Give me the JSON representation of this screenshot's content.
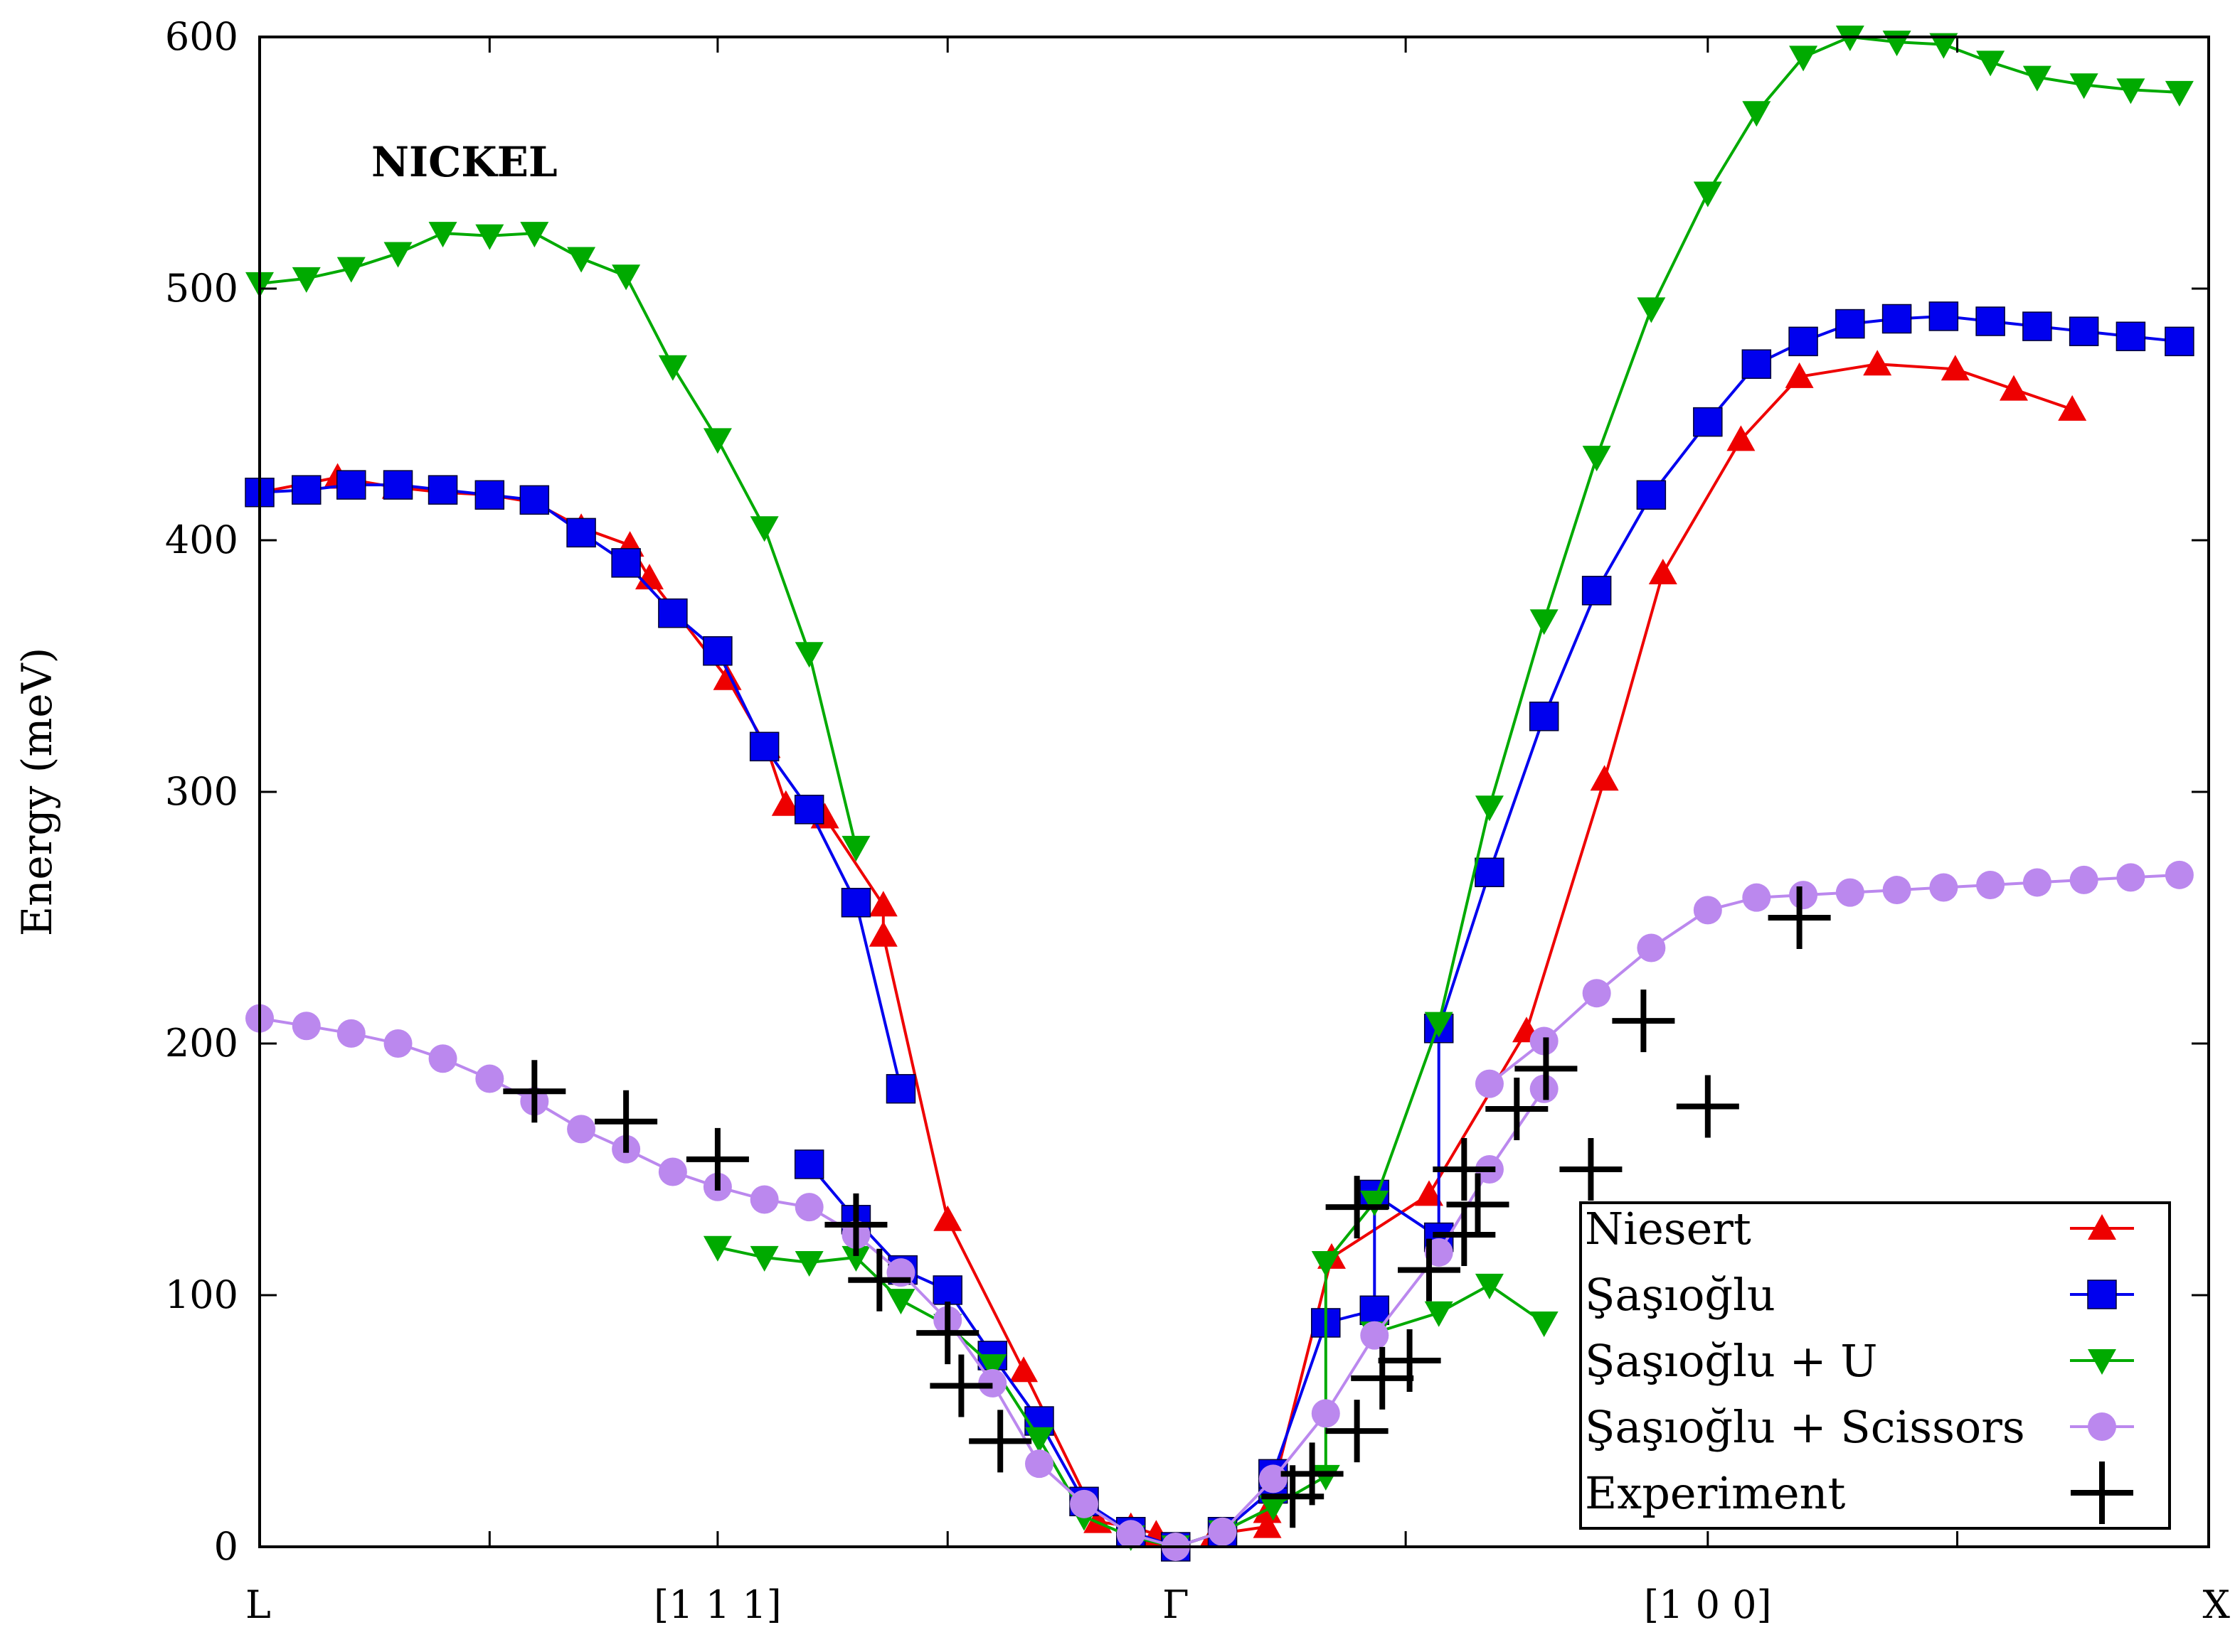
{
  "chart_data": {
    "type": "line",
    "title": "",
    "annotation": "NICKEL",
    "xlabel": "",
    "ylabel": "Energy (meV)",
    "xlim": [
      0,
      1
    ],
    "ylim": [
      0,
      600
    ],
    "yticks": [
      0,
      100,
      200,
      300,
      400,
      500,
      600
    ],
    "ytick_labels": [
      "0",
      "100",
      "200",
      "300",
      "400",
      "500",
      "600"
    ],
    "xtick_labels": [
      {
        "x": 0.0,
        "label": "L"
      },
      {
        "x": 0.235,
        "label": "[1 1 1]"
      },
      {
        "x": 0.47,
        "label": "Γ"
      },
      {
        "x": 0.743,
        "label": "[1 0 0]"
      },
      {
        "x": 1.0,
        "label": "X"
      }
    ],
    "minor_xticks": [
      0.118,
      0.235,
      0.353,
      0.588,
      0.743,
      0.871
    ],
    "grid": false,
    "legend_position": "bottom-right",
    "series": [
      {
        "name": "Niesert",
        "color": "#ee0000",
        "marker": "triangle-up",
        "segments": [
          [
            [
              0.0,
              419
            ],
            [
              0.04,
              425
            ],
            [
              0.07,
              421
            ],
            [
              0.094,
              419
            ],
            [
              0.118,
              418
            ],
            [
              0.141,
              415
            ],
            [
              0.165,
              405
            ],
            [
              0.19,
              398
            ],
            [
              0.2,
              385
            ],
            [
              0.24,
              345
            ],
            [
              0.26,
              318
            ],
            [
              0.27,
              295
            ],
            [
              0.29,
              290
            ],
            [
              0.32,
              255
            ],
            [
              0.32,
              243
            ],
            [
              0.353,
              130
            ],
            [
              0.392,
              70
            ],
            [
              0.43,
              10
            ],
            [
              0.447,
              8
            ],
            [
              0.46,
              5
            ],
            [
              0.47,
              0
            ],
            [
              0.49,
              5
            ],
            [
              0.517,
              8
            ],
            [
              0.517,
              14
            ],
            [
              0.55,
              115
            ],
            [
              0.6,
              140
            ],
            [
              0.65,
              205
            ],
            [
              0.69,
              305
            ],
            [
              0.72,
              387
            ],
            [
              0.76,
              440
            ],
            [
              0.79,
              465
            ],
            [
              0.83,
              470
            ],
            [
              0.87,
              468
            ],
            [
              0.9,
              460
            ],
            [
              0.93,
              452
            ]
          ]
        ]
      },
      {
        "name": "Şaşıoğlu",
        "color": "#0000ee",
        "marker": "square",
        "segments": [
          [
            [
              0.0,
              419
            ],
            [
              0.024,
              420
            ],
            [
              0.047,
              422
            ],
            [
              0.071,
              422
            ],
            [
              0.094,
              420
            ],
            [
              0.118,
              418
            ],
            [
              0.141,
              416
            ],
            [
              0.165,
              403
            ],
            [
              0.188,
              391
            ],
            [
              0.212,
              371
            ],
            [
              0.235,
              356
            ],
            [
              0.259,
              318
            ],
            [
              0.282,
              293
            ],
            [
              0.306,
              256
            ],
            [
              0.329,
              182
            ]
          ],
          [
            [
              0.282,
              152
            ],
            [
              0.306,
              130
            ],
            [
              0.33,
              110
            ],
            [
              0.353,
              102
            ],
            [
              0.376,
              76
            ],
            [
              0.4,
              50
            ],
            [
              0.423,
              18
            ],
            [
              0.447,
              6
            ],
            [
              0.47,
              0
            ],
            [
              0.494,
              6
            ],
            [
              0.52,
              23
            ],
            [
              0.52,
              29
            ],
            [
              0.547,
              89
            ],
            [
              0.572,
              94
            ],
            [
              0.572,
              140
            ],
            [
              0.605,
              123
            ],
            [
              0.605,
              206
            ],
            [
              0.631,
              268
            ],
            [
              0.659,
              330
            ],
            [
              0.686,
              380
            ],
            [
              0.714,
              418
            ],
            [
              0.743,
              447
            ],
            [
              0.768,
              470
            ],
            [
              0.792,
              479
            ],
            [
              0.816,
              486
            ],
            [
              0.84,
              488
            ],
            [
              0.864,
              489
            ],
            [
              0.888,
              487
            ],
            [
              0.912,
              485
            ],
            [
              0.936,
              483
            ],
            [
              0.96,
              481
            ],
            [
              0.985,
              479
            ]
          ]
        ]
      },
      {
        "name": "Şaşıoğlu + U",
        "color": "#00aa00",
        "marker": "triangle-down",
        "segments": [
          [
            [
              0.0,
              502
            ],
            [
              0.024,
              504
            ],
            [
              0.047,
              508
            ],
            [
              0.071,
              514
            ],
            [
              0.094,
              522
            ],
            [
              0.118,
              521
            ],
            [
              0.141,
              522
            ],
            [
              0.165,
              512
            ],
            [
              0.188,
              505
            ],
            [
              0.212,
              469
            ],
            [
              0.235,
              440
            ],
            [
              0.259,
              405
            ],
            [
              0.282,
              355
            ],
            [
              0.306,
              278
            ]
          ],
          [
            [
              0.235,
              119
            ],
            [
              0.259,
              115
            ],
            [
              0.282,
              113
            ],
            [
              0.306,
              115
            ],
            [
              0.329,
              98
            ],
            [
              0.353,
              88
            ],
            [
              0.376,
              72
            ],
            [
              0.4,
              43
            ],
            [
              0.423,
              12
            ],
            [
              0.447,
              4
            ],
            [
              0.47,
              0
            ],
            [
              0.494,
              6
            ],
            [
              0.52,
              16
            ],
            [
              0.547,
              28
            ],
            [
              0.547,
              113
            ],
            [
              0.572,
              137
            ],
            [
              0.605,
              208
            ],
            [
              0.631,
              294
            ],
            [
              0.659,
              368
            ],
            [
              0.686,
              433
            ],
            [
              0.714,
              492
            ],
            [
              0.743,
              538
            ],
            [
              0.768,
              570
            ],
            [
              0.792,
              592
            ],
            [
              0.816,
              600
            ],
            [
              0.84,
              598
            ],
            [
              0.864,
              597
            ],
            [
              0.888,
              590
            ],
            [
              0.912,
              584
            ],
            [
              0.936,
              581
            ],
            [
              0.96,
              579
            ],
            [
              0.985,
              578
            ]
          ],
          [
            [
              0.572,
              85
            ],
            [
              0.605,
              93
            ],
            [
              0.631,
              104
            ],
            [
              0.659,
              89
            ]
          ]
        ]
      },
      {
        "name": "Şaşıoğlu + Scissors",
        "color": "#bb88ee",
        "marker": "circle",
        "segments": [
          [
            [
              0.0,
              210
            ],
            [
              0.024,
              207
            ],
            [
              0.047,
              204
            ],
            [
              0.071,
              200
            ],
            [
              0.094,
              194
            ],
            [
              0.118,
              186
            ],
            [
              0.141,
              177
            ],
            [
              0.165,
              166
            ],
            [
              0.188,
              158
            ],
            [
              0.212,
              149
            ],
            [
              0.235,
              143
            ],
            [
              0.259,
              138
            ],
            [
              0.282,
              135
            ],
            [
              0.306,
              124
            ],
            [
              0.329,
              109
            ],
            [
              0.353,
              90
            ],
            [
              0.376,
              65
            ],
            [
              0.4,
              33
            ],
            [
              0.423,
              17
            ],
            [
              0.447,
              5
            ],
            [
              0.47,
              0
            ],
            [
              0.494,
              6
            ],
            [
              0.52,
              27
            ],
            [
              0.547,
              53
            ],
            [
              0.572,
              84
            ],
            [
              0.605,
              117
            ],
            [
              0.631,
              150
            ],
            [
              0.659,
              182
            ]
          ],
          [
            [
              0.631,
              184
            ],
            [
              0.659,
              201
            ],
            [
              0.686,
              220
            ],
            [
              0.714,
              238
            ],
            [
              0.743,
              253
            ],
            [
              0.768,
              258
            ],
            [
              0.792,
              259
            ],
            [
              0.816,
              260
            ],
            [
              0.84,
              261
            ],
            [
              0.864,
              262
            ],
            [
              0.888,
              263
            ],
            [
              0.912,
              264
            ],
            [
              0.936,
              265
            ],
            [
              0.96,
              266
            ],
            [
              0.985,
              267
            ]
          ]
        ]
      },
      {
        "name": "Experiment",
        "color": "#000000",
        "marker": "plus",
        "segments": [
          [
            [
              0.141,
              181
            ],
            [
              0.188,
              169
            ],
            [
              0.235,
              154
            ],
            [
              0.306,
              128
            ],
            [
              0.318,
              106
            ],
            [
              0.353,
              85
            ],
            [
              0.36,
              64
            ],
            [
              0.38,
              42
            ],
            [
              0.53,
              20
            ],
            [
              0.54,
              29
            ],
            [
              0.563,
              46
            ],
            [
              0.576,
              67
            ],
            [
              0.59,
              74
            ],
            [
              0.6,
              110
            ],
            [
              0.618,
              124
            ],
            [
              0.625,
              136
            ],
            [
              0.645,
              174
            ],
            [
              0.66,
              190
            ],
            [
              0.683,
              150
            ],
            [
              0.71,
              209
            ],
            [
              0.743,
              175
            ],
            [
              0.79,
              250
            ],
            [
              0.563,
              135
            ],
            [
              0.618,
              150
            ]
          ]
        ]
      }
    ]
  }
}
